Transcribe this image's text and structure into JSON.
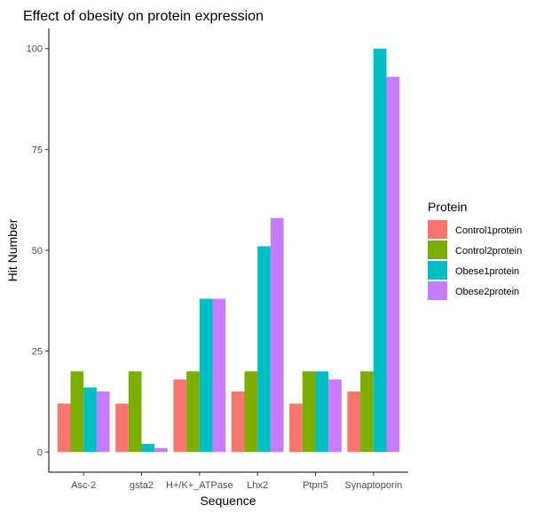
{
  "chart_data": {
    "type": "bar",
    "title": "Effect of obesity on protein expression",
    "xlabel": "Sequence",
    "ylabel": "Hit Number",
    "ylim": [
      -5,
      105
    ],
    "yticks": [
      0,
      25,
      50,
      75,
      100
    ],
    "grid": false,
    "legend_position": "right",
    "legend_title": "Protein",
    "categories": [
      "Asc-2",
      "gsta2",
      "H+/K+_ATPase",
      "Lhx2",
      "Ptpn5",
      "Synaptoporin"
    ],
    "series": [
      {
        "name": "Control1protein",
        "color": "#F8766D",
        "values": [
          12,
          12,
          18,
          15,
          12,
          15
        ]
      },
      {
        "name": "Control2protein",
        "color": "#7CAE00",
        "values": [
          20,
          20,
          20,
          20,
          20,
          20
        ]
      },
      {
        "name": "Obese1protein",
        "color": "#00BFC4",
        "values": [
          16,
          2,
          38,
          51,
          20,
          100
        ]
      },
      {
        "name": "Obese2protein",
        "color": "#C77CFF",
        "values": [
          15,
          1,
          38,
          58,
          18,
          93
        ]
      }
    ]
  }
}
